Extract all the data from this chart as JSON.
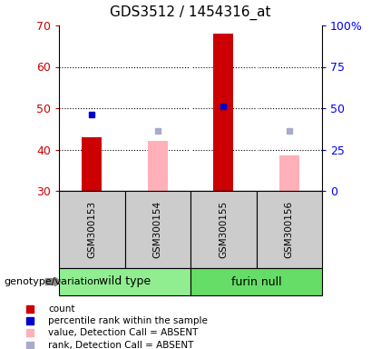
{
  "title": "GDS3512 / 1454316_at",
  "samples": [
    "GSM300153",
    "GSM300154",
    "GSM300155",
    "GSM300156"
  ],
  "groups": [
    {
      "name": "wild type",
      "color": "#90EE90"
    },
    {
      "name": "furin null",
      "color": "#66DD66"
    }
  ],
  "counts": [
    43,
    null,
    68,
    null
  ],
  "percentile_ranks": [
    48.5,
    null,
    50.5,
    null
  ],
  "absent_values": [
    null,
    42,
    null,
    38.5
  ],
  "absent_ranks": [
    null,
    44.5,
    null,
    44.5
  ],
  "ylim_left": [
    30,
    70
  ],
  "ylim_right": [
    0,
    100
  ],
  "yticks_left": [
    30,
    40,
    50,
    60,
    70
  ],
  "yticks_right": [
    0,
    25,
    50,
    75,
    100
  ],
  "ytick_labels_right": [
    "0",
    "25",
    "50",
    "75",
    "100%"
  ],
  "red_color": "#CC0000",
  "pink_color": "#FFB0B8",
  "blue_color": "#0000CC",
  "lavender_color": "#AAAACC",
  "gray_color": "#CCCCCC",
  "legend_labels": [
    "count",
    "percentile rank within the sample",
    "value, Detection Call = ABSENT",
    "rank, Detection Call = ABSENT"
  ]
}
